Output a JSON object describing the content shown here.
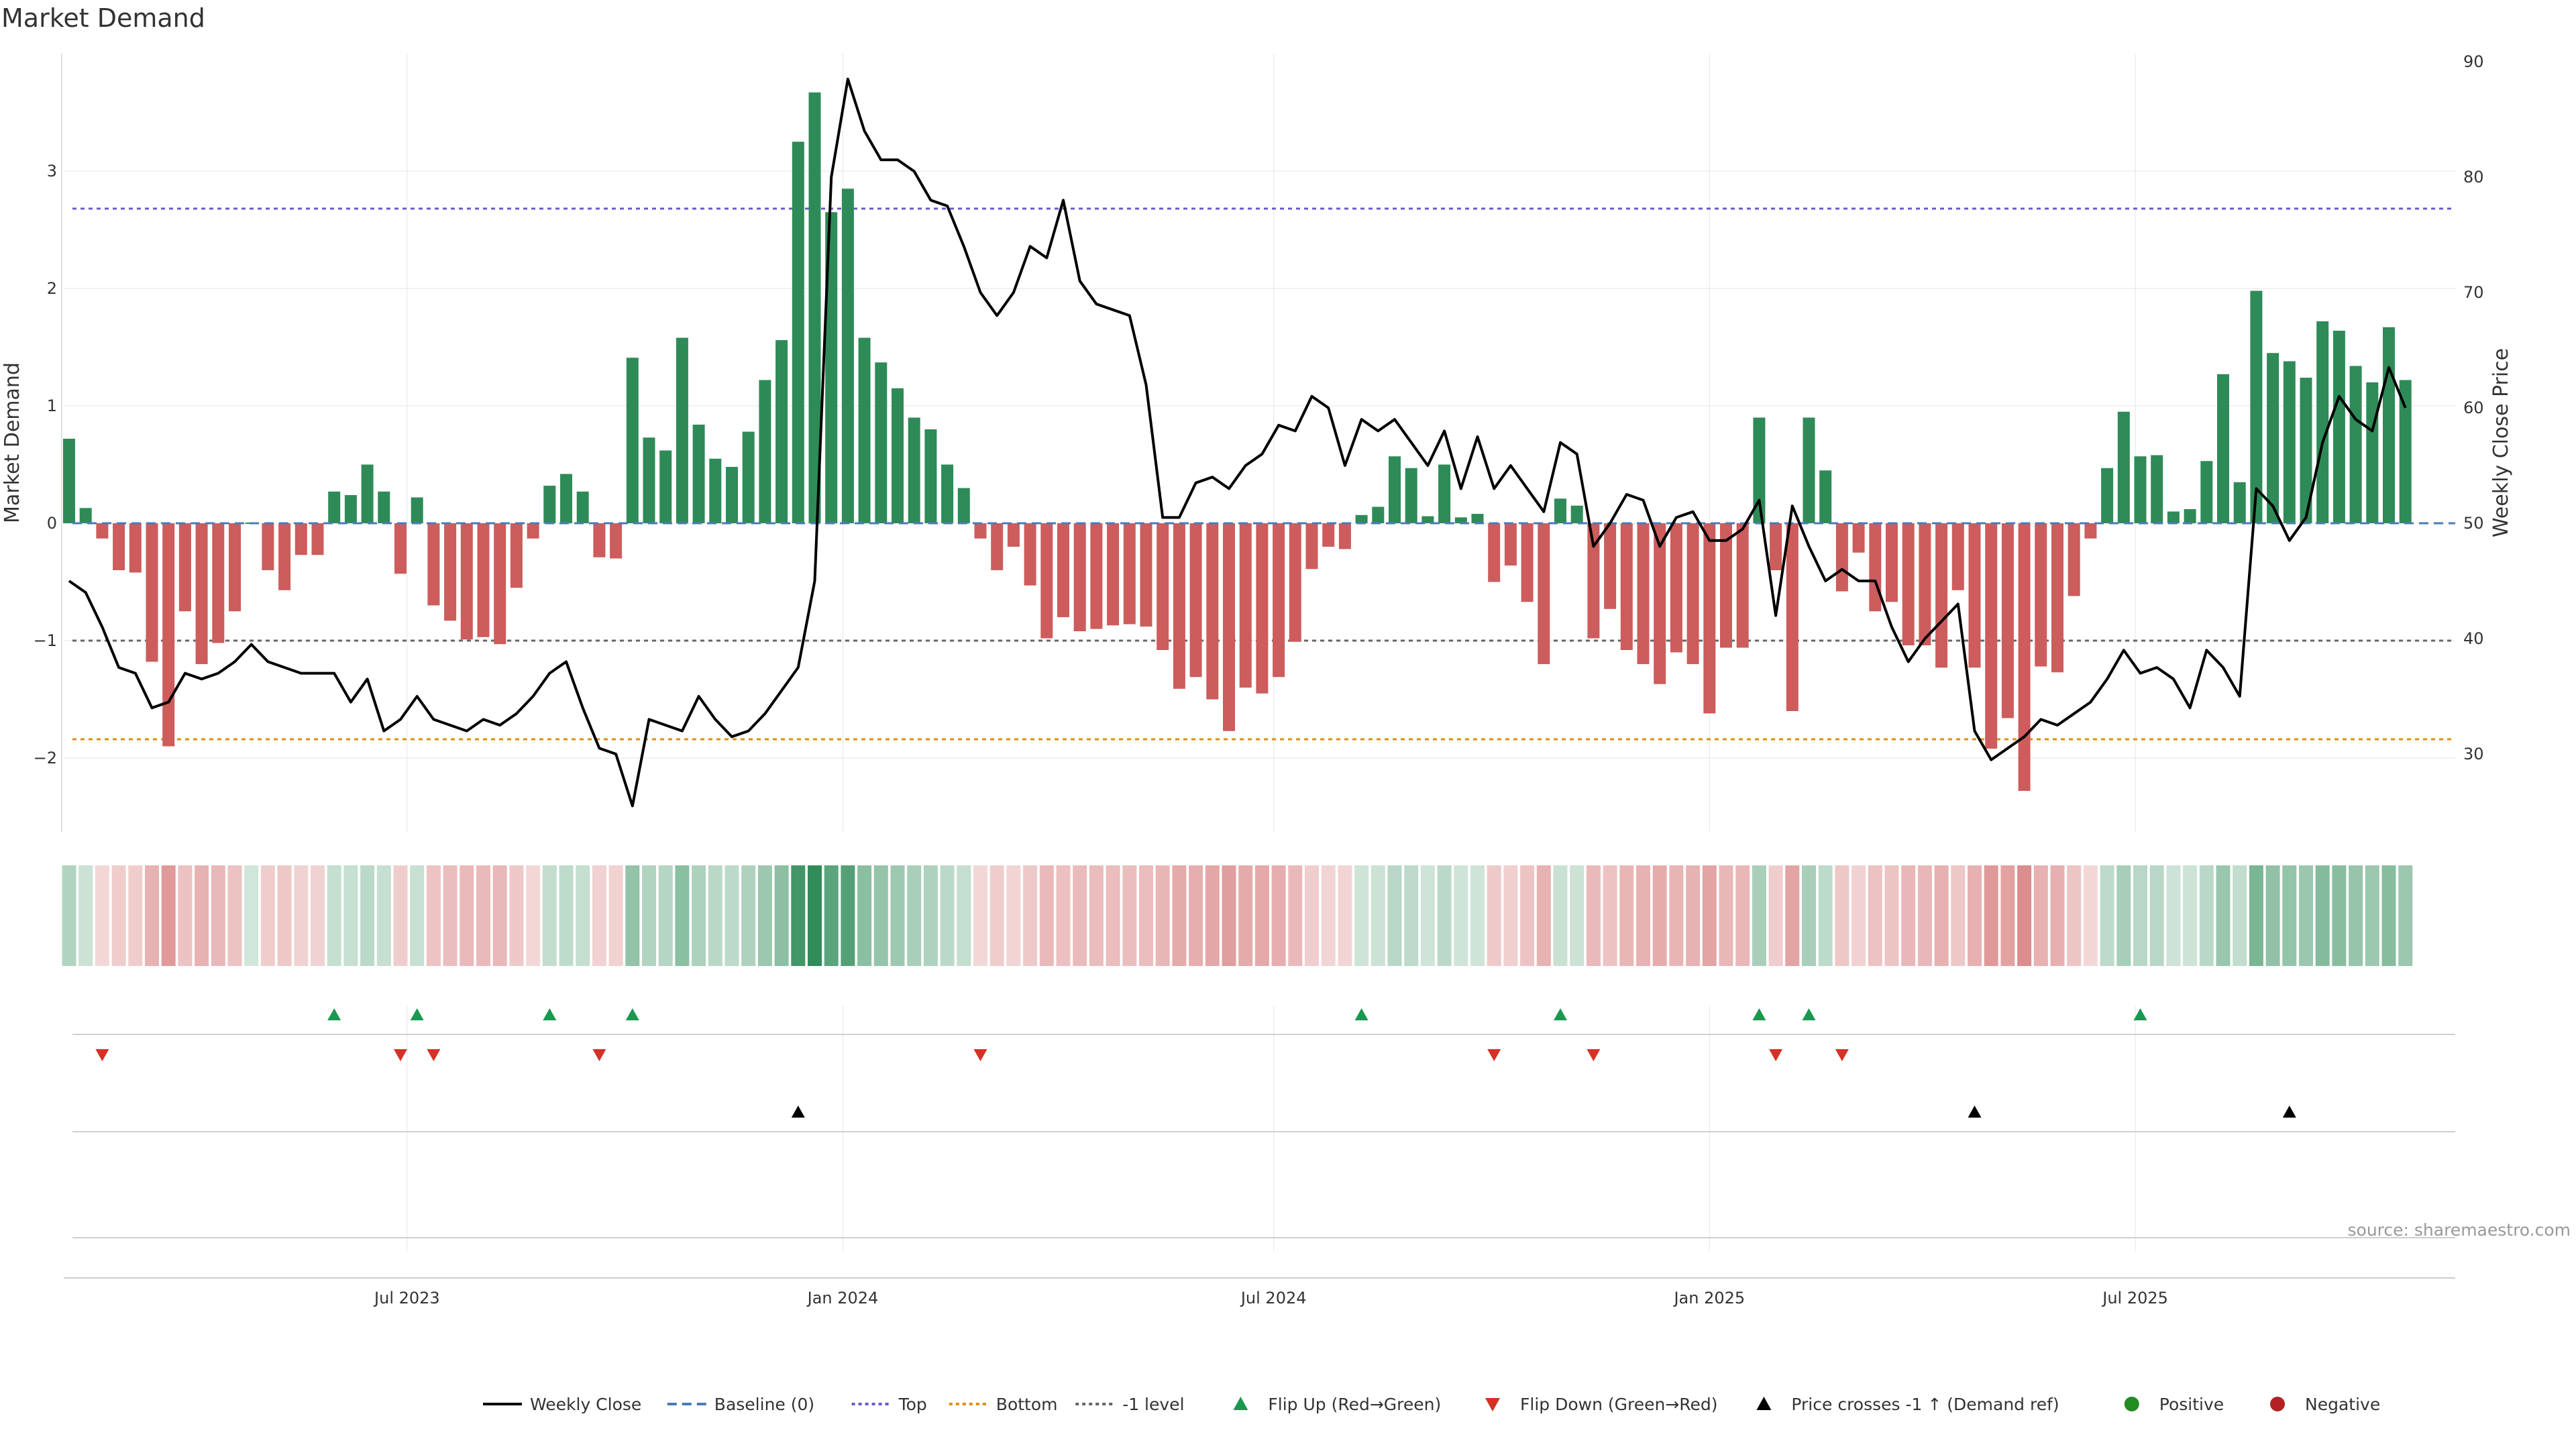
{
  "chart_data": {
    "type": "bar",
    "title": "Market Demand",
    "ylabel": "Market Demand",
    "y2label": "Weekly Close Price",
    "ylim": [
      -2.6,
      3.9
    ],
    "y2lim": [
      23.5,
      91.5
    ],
    "yticks": [
      "3",
      "2",
      "1",
      "0",
      "−1",
      "−2"
    ],
    "y2ticks": [
      "90",
      "80",
      "70",
      "60",
      "50",
      "40",
      "30"
    ],
    "xtick_labels": [
      "Jul 2023",
      "Jan 2024",
      "Jul 2024",
      "Jan 2025",
      "Jul 2025"
    ],
    "xtick_bar_index": [
      20.4,
      46.7,
      72.7,
      99.0,
      124.7
    ],
    "levels": [
      {
        "name": "Top",
        "value": 2.68,
        "color": "#6a5acd"
      },
      {
        "name": "-1 level",
        "value": -1.0,
        "color": "#666666"
      },
      {
        "name": "Bottom",
        "value": -1.84,
        "color": "#e08e0b"
      }
    ],
    "series": [
      {
        "name": "Market Demand",
        "values": [
          0.72,
          0.13,
          -0.13,
          -0.4,
          -0.42,
          -1.18,
          -1.9,
          -0.75,
          -1.2,
          -1.02,
          -0.75,
          0,
          -0.4,
          -0.57,
          -0.27,
          -0.27,
          0.27,
          0.24,
          0.5,
          0.27,
          -0.43,
          0.22,
          -0.7,
          -0.83,
          -0.99,
          -0.97,
          -1.03,
          -0.55,
          -0.13,
          0.32,
          0.42,
          0.27,
          -0.29,
          -0.3,
          1.41,
          0.73,
          0.62,
          1.58,
          0.84,
          0.55,
          0.48,
          0.78,
          1.22,
          1.56,
          3.25,
          3.67,
          2.65,
          2.85,
          1.58,
          1.37,
          1.15,
          0.9,
          0.8,
          0.5,
          0.3,
          -0.13,
          -0.4,
          -0.2,
          -0.53,
          -0.98,
          -0.8,
          -0.92,
          -0.9,
          -0.87,
          -0.86,
          -0.88,
          -1.08,
          -1.41,
          -1.31,
          -1.5,
          -1.77,
          -1.4,
          -1.45,
          -1.31,
          -1.01,
          -0.39,
          -0.2,
          -0.22,
          0.07,
          0.14,
          0.57,
          0.47,
          0.06,
          0.5,
          0.05,
          0.08,
          -0.5,
          -0.36,
          -0.67,
          -1.2,
          0.21,
          0.15,
          -0.98,
          -0.73,
          -1.08,
          -1.2,
          -1.37,
          -1.1,
          -1.2,
          -1.62,
          -1.06,
          -1.06,
          0.9,
          -0.4,
          -1.6,
          0.9,
          0.45,
          -0.58,
          -0.25,
          -0.75,
          -0.67,
          -1.04,
          -1.04,
          -1.23,
          -0.57,
          -1.23,
          -1.92,
          -1.66,
          -2.28,
          -1.22,
          -1.27,
          -0.62,
          -0.13,
          0.47,
          0.95,
          0.57,
          0.58,
          0.1,
          0.12,
          0.53,
          1.27,
          0.35,
          1.98,
          1.45,
          1.38,
          1.24,
          1.72,
          1.64,
          1.34,
          1.2,
          1.67,
          1.22
        ]
      },
      {
        "name": "Weekly Close",
        "values": [
          45,
          44,
          41,
          37.5,
          37,
          34,
          34.5,
          37,
          36.5,
          37,
          38,
          39.5,
          38,
          37.5,
          37,
          37,
          37,
          34.5,
          36.5,
          32,
          33,
          35,
          33,
          32.5,
          32,
          33,
          32.5,
          33.5,
          35,
          37,
          38,
          34,
          30.5,
          30,
          25.5,
          33,
          32.5,
          32,
          35,
          33,
          31.5,
          32,
          33.5,
          35.5,
          37.5,
          45,
          80,
          88.5,
          84,
          81.5,
          81.5,
          80.5,
          78,
          77.5,
          74,
          70,
          68,
          70,
          74,
          73,
          78,
          71,
          69,
          68.5,
          68,
          62,
          50.5,
          50.5,
          53.5,
          54,
          53,
          55,
          56,
          58.5,
          58,
          61,
          60,
          55,
          59,
          58,
          59,
          57,
          55,
          58,
          53,
          57.5,
          53,
          55,
          53,
          51,
          57,
          56,
          48,
          50,
          52.5,
          52,
          48,
          50.5,
          51,
          48.5,
          48.5,
          49.5,
          52,
          42,
          51.5,
          48,
          45,
          46,
          45,
          45,
          41,
          38,
          40,
          41.5,
          43,
          32,
          29.5,
          30.5,
          31.5,
          33,
          32.5,
          33.5,
          34.5,
          36.5,
          39,
          37,
          37.5,
          36.5,
          34,
          39,
          37.5,
          35,
          53,
          51.5,
          48.5,
          50.5,
          57,
          61,
          59,
          58,
          63.5,
          60
        ]
      }
    ],
    "flip_up_indices": [
      16,
      21,
      29,
      34,
      78,
      90,
      102,
      105,
      125
    ],
    "flip_down_indices": [
      2,
      20,
      22,
      32,
      55,
      86,
      92,
      103,
      107
    ],
    "price_cross_indices": [
      44,
      115,
      134
    ],
    "source": "source: sharemaestro.com",
    "legend": [
      {
        "label": "Weekly Close",
        "kind": "line",
        "color": "#000000"
      },
      {
        "label": "Baseline (0)",
        "kind": "dash",
        "color": "#4a7bb7"
      },
      {
        "label": "Top",
        "kind": "dot",
        "color": "#6a5acd"
      },
      {
        "label": "Bottom",
        "kind": "dot",
        "color": "#e08e0b"
      },
      {
        "label": "-1 level",
        "kind": "dot",
        "color": "#666666"
      },
      {
        "label": "Flip Up (Red→Green)",
        "kind": "tri-up",
        "color": "#1a9850"
      },
      {
        "label": "Flip Down (Green→Red)",
        "kind": "tri-down",
        "color": "#d73027"
      },
      {
        "label": "Price crosses -1 ↑ (Demand ref)",
        "kind": "tri-up",
        "color": "#000000"
      },
      {
        "label": "Positive",
        "kind": "circle",
        "color": "#228b22"
      },
      {
        "label": "Negative",
        "kind": "circle",
        "color": "#b22222"
      }
    ],
    "colors": {
      "positive": "#2e8b57",
      "negative": "#cd5c5c",
      "price": "#000000",
      "baseline": "#4a7bb7",
      "flip_up": "#1a9850",
      "flip_down": "#d73027",
      "cross": "#000000",
      "grid": "#e6e6e6"
    }
  }
}
